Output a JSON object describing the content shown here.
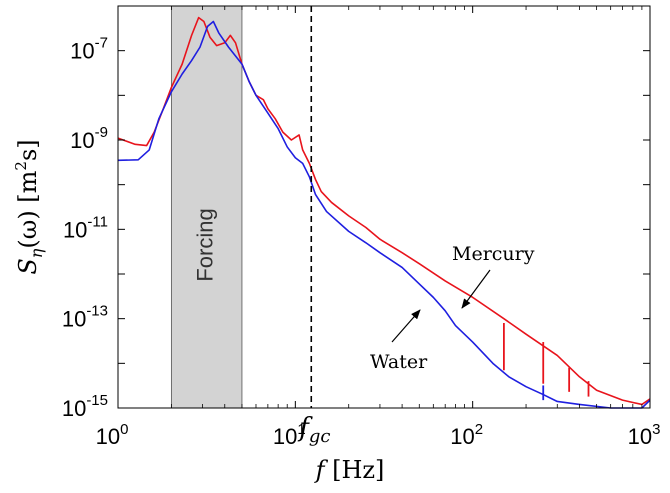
{
  "chart_data": {
    "type": "line",
    "xscale": "log",
    "yscale": "log",
    "xlim": [
      1,
      1000
    ],
    "ylim": [
      1e-15,
      1e-06
    ],
    "xticks": [
      {
        "value": 1,
        "base": "10",
        "exp": "0"
      },
      {
        "value": 10,
        "base": "10",
        "exp": "1"
      },
      {
        "value": 100,
        "base": "10",
        "exp": "2"
      },
      {
        "value": 1000,
        "base": "10",
        "exp": "3"
      }
    ],
    "yticks": [
      {
        "value": 1e-15,
        "base": "10",
        "exp": "-15"
      },
      {
        "value": 1e-13,
        "base": "10",
        "exp": "-13"
      },
      {
        "value": 1e-11,
        "base": "10",
        "exp": "-11"
      },
      {
        "value": 1e-09,
        "base": "10",
        "exp": "-9"
      },
      {
        "value": 1e-07,
        "base": "10",
        "exp": "-7"
      }
    ],
    "xlabel": {
      "var": "f",
      "unit": "[Hz]"
    },
    "ylabel": {
      "S": "S",
      "sub": "η",
      "arg": "(ω)",
      "unit_open": "[m",
      "unit_sup": "2",
      "unit_close": "s]"
    },
    "shaded_band": {
      "label": "Forcing",
      "x_start": 2,
      "x_end": 5,
      "color": "#d3d3d3"
    },
    "vline": {
      "x": 12.3,
      "label": "f",
      "label_sub": "gc",
      "style": "dashed"
    },
    "series": [
      {
        "name": "Mercury",
        "color": "#e8141c",
        "points": [
          [
            1,
            1.1e-09
          ],
          [
            1.25,
            8e-10
          ],
          [
            1.45,
            7.5e-10
          ],
          [
            1.6,
            1.5e-09
          ],
          [
            1.8,
            5e-09
          ],
          [
            2,
            1.5e-08
          ],
          [
            2.3,
            5e-08
          ],
          [
            2.6,
            2.2e-07
          ],
          [
            2.85,
            5.5e-07
          ],
          [
            3.05,
            4.5e-07
          ],
          [
            3.3,
            2e-07
          ],
          [
            3.6,
            1.3e-07
          ],
          [
            4,
            1.5e-07
          ],
          [
            4.3,
            2.2e-07
          ],
          [
            4.6,
            1.5e-07
          ],
          [
            5,
            5e-08
          ],
          [
            5.5,
            2e-08
          ],
          [
            6,
            1e-08
          ],
          [
            6.6,
            8e-09
          ],
          [
            7,
            5e-09
          ],
          [
            7.7,
            3e-09
          ],
          [
            8.5,
            1.5e-09
          ],
          [
            9.5,
            1e-09
          ],
          [
            10.5,
            1.3e-09
          ],
          [
            11,
            6e-10
          ],
          [
            12,
            3e-10
          ],
          [
            13,
            1.3e-10
          ],
          [
            14,
            7e-11
          ],
          [
            16,
            4e-11
          ],
          [
            20,
            2e-11
          ],
          [
            25,
            1.1e-11
          ],
          [
            30,
            6e-12
          ],
          [
            40,
            3e-12
          ],
          [
            50,
            1.7e-12
          ],
          [
            70,
            7e-13
          ],
          [
            100,
            3e-13
          ],
          [
            150,
            1e-13
          ],
          [
            200,
            4.5e-14
          ],
          [
            300,
            1.5e-14
          ],
          [
            400,
            5e-15
          ],
          [
            500,
            2.5e-15
          ],
          [
            700,
            1.5e-15
          ],
          [
            900,
            1.2e-15
          ],
          [
            1000,
            1.6e-15
          ]
        ]
      },
      {
        "name": "Water",
        "color": "#1f1fe0",
        "points": [
          [
            1,
            3.5e-10
          ],
          [
            1.3,
            3.6e-10
          ],
          [
            1.5,
            6e-10
          ],
          [
            1.7,
            3e-09
          ],
          [
            2,
            1.2e-08
          ],
          [
            2.3,
            3e-08
          ],
          [
            2.6,
            6e-08
          ],
          [
            2.9,
            1.2e-07
          ],
          [
            3.2,
            3.5e-07
          ],
          [
            3.45,
            4.5e-07
          ],
          [
            3.7,
            2.5e-07
          ],
          [
            4.2,
            1.2e-07
          ],
          [
            5,
            5e-08
          ],
          [
            5.5,
            2e-08
          ],
          [
            6,
            1e-08
          ],
          [
            7,
            4e-09
          ],
          [
            8,
            1.8e-09
          ],
          [
            9,
            7e-10
          ],
          [
            10,
            4e-10
          ],
          [
            11,
            3e-10
          ],
          [
            12,
            1.5e-10
          ],
          [
            13,
            6e-11
          ],
          [
            15,
            2.5e-11
          ],
          [
            20,
            9e-12
          ],
          [
            25,
            5e-12
          ],
          [
            30,
            3e-12
          ],
          [
            40,
            1.4e-12
          ],
          [
            50,
            6e-13
          ],
          [
            60,
            3e-13
          ],
          [
            70,
            1.5e-13
          ],
          [
            80,
            7e-14
          ],
          [
            100,
            3e-14
          ],
          [
            130,
            1e-14
          ],
          [
            160,
            5e-15
          ],
          [
            200,
            3e-15
          ],
          [
            250,
            2e-15
          ],
          [
            300,
            1.4e-15
          ],
          [
            400,
            1.2e-15
          ],
          [
            600,
            1e-15
          ],
          [
            900,
            1e-15
          ],
          [
            1000,
            1.5e-15
          ]
        ]
      }
    ],
    "spikes": [
      {
        "series": "Mercury",
        "x": 150,
        "top": 8e-14,
        "base": 7e-15
      },
      {
        "series": "Mercury",
        "x": 250,
        "top": 3e-14,
        "base": 3.5e-15
      },
      {
        "series": "Mercury",
        "x": 350,
        "top": 8e-15,
        "base": 2.3e-15
      },
      {
        "series": "Mercury",
        "x": 450,
        "top": 4e-15,
        "base": 1.8e-15
      },
      {
        "series": "Water",
        "x": 250,
        "top": 3.2e-15,
        "base": 1.5e-15
      }
    ],
    "annotations": [
      {
        "text": "Mercury",
        "series": "Mercury"
      },
      {
        "text": "Water",
        "series": "Water"
      }
    ],
    "grid": false,
    "legend": "none"
  }
}
